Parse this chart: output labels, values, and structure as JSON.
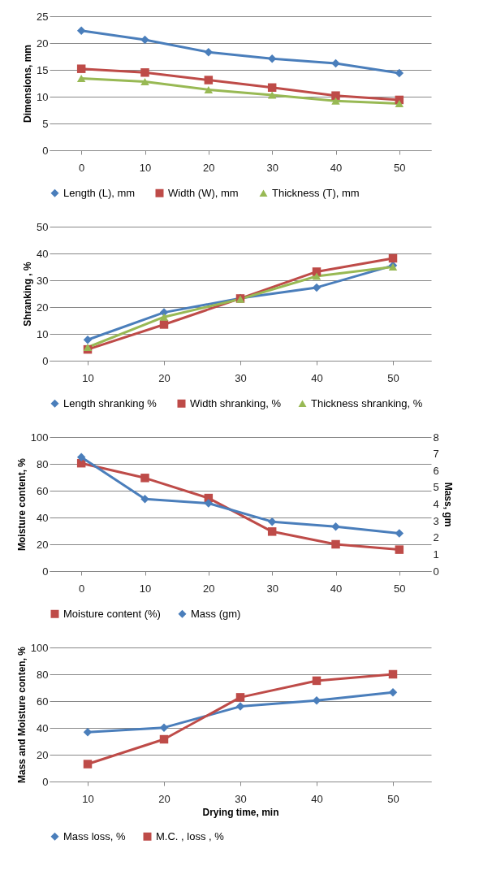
{
  "chart_data": [
    {
      "type": "line",
      "categories": [
        "0",
        "10",
        "20",
        "30",
        "40",
        "50"
      ],
      "ylabel": "Dimensions, mm",
      "ylim": [
        0,
        25
      ],
      "yticks": [
        0,
        5,
        10,
        15,
        20,
        25
      ],
      "grid": "y",
      "legend": "bottom",
      "series": [
        {
          "name": "Length (L),  mm",
          "color": "#4a7ebb",
          "marker": "diamond",
          "values": [
            22.3,
            20.6,
            18.3,
            17.1,
            16.2,
            14.4
          ]
        },
        {
          "name": "Width (W),  mm",
          "color": "#be4b48",
          "marker": "square",
          "values": [
            15.2,
            14.5,
            13.1,
            11.7,
            10.2,
            9.4
          ]
        },
        {
          "name": "Thickness (T), mm",
          "color": "#98b954",
          "marker": "triangle",
          "values": [
            13.4,
            12.8,
            11.3,
            10.3,
            9.2,
            8.7
          ]
        }
      ]
    },
    {
      "type": "line",
      "categories": [
        "10",
        "20",
        "30",
        "40",
        "50"
      ],
      "ylabel": "Shranking , %",
      "ylim": [
        0,
        50
      ],
      "yticks": [
        0,
        10,
        20,
        30,
        40,
        50
      ],
      "grid": "y",
      "legend": "bottom",
      "series": [
        {
          "name": "Length shranking  %",
          "color": "#4a7ebb",
          "marker": "diamond",
          "values": [
            7.8,
            18,
            23.3,
            27.3,
            35.5
          ]
        },
        {
          "name": "Width shranking, %",
          "color": "#be4b48",
          "marker": "square",
          "values": [
            4.2,
            13.5,
            23.2,
            33.2,
            38.2
          ]
        },
        {
          "name": "Thickness shranking, %",
          "color": "#98b954",
          "marker": "triangle",
          "values": [
            5,
            16.3,
            23,
            31.5,
            35
          ]
        }
      ]
    },
    {
      "type": "line",
      "categories": [
        "0",
        "10",
        "20",
        "30",
        "40",
        "50"
      ],
      "ylabel": "Moisture content, %",
      "y2label": "Mass, gm",
      "ylim": [
        0,
        100
      ],
      "yticks": [
        0,
        20,
        40,
        60,
        80,
        100
      ],
      "y2lim": [
        0,
        8
      ],
      "y2ticks": [
        0,
        1,
        2,
        3,
        4,
        5,
        6,
        7,
        8
      ],
      "grid": "y",
      "legend": "bottom",
      "series": [
        {
          "name": "Moisture content (%)",
          "color": "#be4b48",
          "marker": "square",
          "values": [
            80.5,
            69.5,
            54.5,
            29.5,
            20,
            16
          ]
        },
        {
          "name": "Mass (gm)",
          "color": "#4a7ebb",
          "marker": "diamond",
          "axis": "y2",
          "values": [
            6.8,
            4.3,
            4.05,
            2.95,
            2.65,
            2.25
          ]
        }
      ]
    },
    {
      "type": "line",
      "categories": [
        "10",
        "20",
        "30",
        "40",
        "50"
      ],
      "xlabel": "Drying time, min",
      "ylabel": "Mass and Moisture conten, %",
      "ylim": [
        0,
        100
      ],
      "yticks": [
        0,
        20,
        40,
        60,
        80,
        100
      ],
      "grid": "y",
      "legend": "bottom",
      "series": [
        {
          "name": "Mass loss, %",
          "color": "#4a7ebb",
          "marker": "diamond",
          "values": [
            36.8,
            40.2,
            56,
            60.5,
            66.5
          ]
        },
        {
          "name": "M.C. , loss , %",
          "color": "#be4b48",
          "marker": "square",
          "values": [
            13,
            31.5,
            62.8,
            75.2,
            80
          ]
        }
      ]
    }
  ]
}
